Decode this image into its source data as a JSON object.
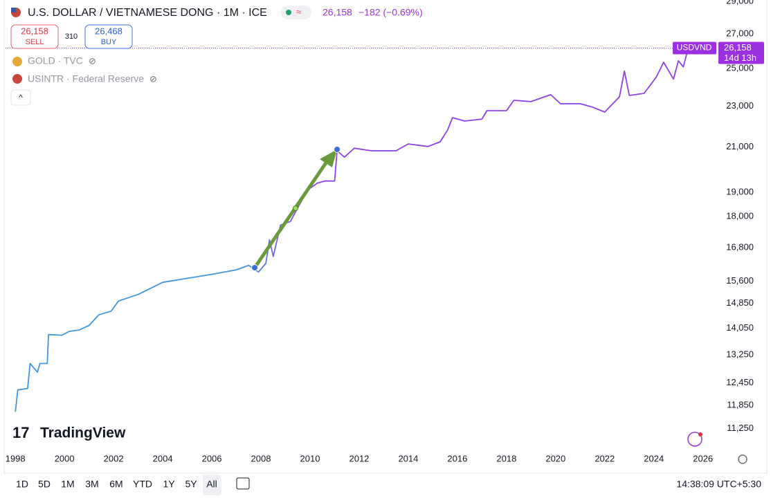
{
  "header": {
    "title": "U.S. DOLLAR / VIETNAMESE DONG · 1M · ICE",
    "price": "26,158",
    "change": "−182 (−0.69%)",
    "sell_price": "26,158",
    "sell_label": "SELL",
    "spread": "310",
    "buy_price": "26,468",
    "buy_label": "BUY"
  },
  "overlays": [
    "GOLD · TVC",
    "USINTR · Federal Reserve"
  ],
  "price_label": {
    "value": "26,158",
    "countdown": "14d 13h"
  },
  "logo": "TradingView",
  "timeframes": [
    "1D",
    "5D",
    "1M",
    "3M",
    "6M",
    "YTD",
    "1Y",
    "5Y",
    "All"
  ],
  "clock": "14:38:09 UTC+5:30",
  "chart_data": {
    "type": "line",
    "log_scale": true,
    "gradient": [
      "#3f95dc",
      "#8d3fe8"
    ],
    "xlim": [
      1997.6,
      2026.6
    ],
    "xticks": [
      1998,
      2000,
      2002,
      2004,
      2006,
      2008,
      2010,
      2012,
      2014,
      2016,
      2018,
      2020,
      2022,
      2024,
      2026
    ],
    "ylim": [
      10740,
      29100
    ],
    "yticks": [
      {
        "value": 11250,
        "label": "11,250"
      },
      {
        "value": 11850,
        "label": "11,850"
      },
      {
        "value": 12450,
        "label": "12,450"
      },
      {
        "value": 13250,
        "label": "13,250"
      },
      {
        "value": 14050,
        "label": "14,050"
      },
      {
        "value": 14850,
        "label": "14,850"
      },
      {
        "value": 15600,
        "label": "15,600"
      },
      {
        "value": 16800,
        "label": "16,800"
      },
      {
        "value": 18000,
        "label": "18,000"
      },
      {
        "value": 19000,
        "label": "19,000"
      },
      {
        "value": 21000,
        "label": "21,000"
      },
      {
        "value": 23000,
        "label": "23,000"
      },
      {
        "value": 25000,
        "label": "25,000"
      },
      {
        "value": 27000,
        "label": "27,000"
      },
      {
        "value": 29000,
        "label": "29,000"
      }
    ],
    "series": [
      {
        "name": "USDVND",
        "x": [
          1998.0,
          1998.1,
          1998.5,
          1998.6,
          1998.9,
          1999.0,
          1999.3,
          1999.35,
          1999.9,
          2000.2,
          2000.6,
          2001.0,
          2001.4,
          2001.9,
          2002.2,
          2003.0,
          2004.0,
          2005.0,
          2006.0,
          2007.0,
          2007.5,
          2007.9,
          2008.2,
          2008.35,
          2008.5,
          2008.8,
          2009.2,
          2009.5,
          2009.9,
          2010.3,
          2010.6,
          2011.0,
          2011.1,
          2011.4,
          2011.8,
          2012.5,
          2013.5,
          2014.0,
          2014.8,
          2015.3,
          2015.6,
          2015.8,
          2016.3,
          2017.0,
          2017.2,
          2018.0,
          2018.3,
          2019.0,
          2019.8,
          2020.2,
          2021.0,
          2021.5,
          2022.0,
          2022.6,
          2022.8,
          2023.0,
          2023.6,
          2024.1,
          2024.4,
          2024.8,
          2025.0,
          2025.2,
          2025.4
        ],
        "values": [
          11680,
          12260,
          12300,
          13000,
          12750,
          13000,
          13000,
          13860,
          13840,
          13960,
          14000,
          14140,
          14480,
          14600,
          14930,
          15150,
          15560,
          15700,
          15840,
          16000,
          16160,
          15920,
          16230,
          17100,
          16480,
          17670,
          17810,
          18360,
          19090,
          19390,
          19480,
          19480,
          20830,
          20540,
          20950,
          20830,
          20830,
          21150,
          21030,
          21250,
          21810,
          22420,
          22250,
          22350,
          22770,
          22770,
          23300,
          23230,
          23590,
          23120,
          23120,
          22950,
          22700,
          23480,
          24860,
          23550,
          23660,
          24530,
          25350,
          24420,
          25430,
          25090,
          26158
        ]
      }
    ]
  }
}
